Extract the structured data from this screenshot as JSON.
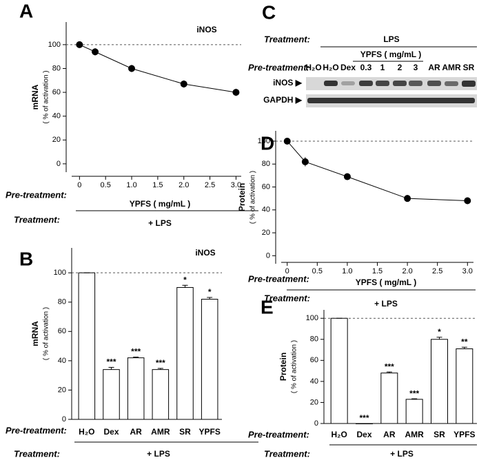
{
  "chart_data": [
    {
      "panel": "A",
      "type": "scatter",
      "title": "iNOS",
      "ylabel": "mRNA",
      "ylabel_note": "( % of activation )",
      "xlabel": "YPFS ( mg/mL )",
      "pretreatment_label": "Pre-treatment:",
      "treatment_label": "Treatment:",
      "treatment": "+ LPS",
      "x": [
        0,
        0.3,
        1,
        2,
        3
      ],
      "values": [
        100,
        94,
        80,
        67,
        60
      ],
      "errors": [
        1,
        3,
        3,
        3,
        3
      ],
      "xlim": [
        -0.15,
        3.1
      ],
      "xticks": [
        0,
        0.5,
        {
          "value": 1,
          "label": "1.0"
        },
        1.5,
        {
          "value": 2,
          "label": "2.0"
        },
        2.5,
        {
          "value": 3,
          "label": "3.0"
        }
      ],
      "ylim": [
        -7,
        119
      ],
      "yticks": [
        0,
        20,
        40,
        60,
        80,
        100
      ],
      "refline": 100,
      "color": "#000000"
    },
    {
      "panel": "B",
      "type": "bar",
      "title": "iNOS",
      "ylabel": "mRNA",
      "ylabel_note": "( % of activation )",
      "pretreatment_label": "Pre-treatment:",
      "treatment_label": "Treatment:",
      "treatment": "+ LPS",
      "categories": [
        "H₂O",
        "Dex",
        "AR",
        "AMR",
        "SR",
        "YPFS"
      ],
      "values": [
        100,
        34,
        42,
        34,
        90,
        82
      ],
      "errors": [
        0,
        1.5,
        0.5,
        0.8,
        1.5,
        1.2
      ],
      "annotations": [
        null,
        "***",
        "***",
        "***",
        "*",
        "*"
      ],
      "ylim": [
        0,
        117
      ],
      "yticks": [
        0,
        20,
        40,
        60,
        80,
        100
      ],
      "refline": 100,
      "color": "#ffffff"
    },
    {
      "panel": "D",
      "type": "scatter",
      "ylabel": "Protein",
      "ylabel_note": "( % of activation )",
      "xlabel": "YPFS ( mg/mL )",
      "pretreatment_label": "Pre-treatment:",
      "treatment_label": "Treatment:",
      "treatment": "+ LPS",
      "x": [
        0,
        0.3,
        1,
        2,
        3
      ],
      "values": [
        100,
        82,
        69,
        50,
        48
      ],
      "errors": [
        1,
        4,
        3,
        3,
        3
      ],
      "xlim": [
        -0.1,
        3.1
      ],
      "xticks": [
        0,
        0.5,
        {
          "value": 1,
          "label": "1.0"
        },
        1.5,
        {
          "value": 2,
          "label": "2.0"
        },
        2.5,
        {
          "value": 3,
          "label": "3.0"
        }
      ],
      "ylim": [
        -7,
        109
      ],
      "yticks": [
        0,
        20,
        40,
        60,
        80,
        100
      ],
      "refline": 100,
      "color": "#000000"
    },
    {
      "panel": "E",
      "type": "bar",
      "ylabel": "Protein",
      "ylabel_note": "( % of activation )",
      "pretreatment_label": "Pre-treatment:",
      "treatment_label": "Treatment:",
      "treatment": "+ LPS",
      "categories": [
        "H₂O",
        "Dex",
        "AR",
        "AMR",
        "SR",
        "YPFS"
      ],
      "values": [
        100,
        0,
        48,
        23,
        80,
        71
      ],
      "errors": [
        0,
        0,
        1,
        0.5,
        2,
        1.5
      ],
      "annotations": [
        null,
        "***",
        "***",
        "***",
        "*",
        "**"
      ],
      "ylim": [
        0,
        108
      ],
      "yticks": [
        0,
        20,
        40,
        60,
        80,
        100
      ],
      "refline": 100,
      "color": "#ffffff"
    }
  ],
  "blot": {
    "panel": "C",
    "treatment_label": "Treatment:",
    "treatment": "LPS",
    "dose_label": "YPFS ( mg/mL )",
    "pretreatment_label": "Pre-treatment:",
    "lanes": [
      "H₂O",
      "H₂O",
      "Dex",
      "0.3",
      "1",
      "2",
      "3",
      "AR",
      "AMR",
      "SR"
    ],
    "rows": [
      "iNOS ▶",
      "GAPDH ▶"
    ]
  }
}
